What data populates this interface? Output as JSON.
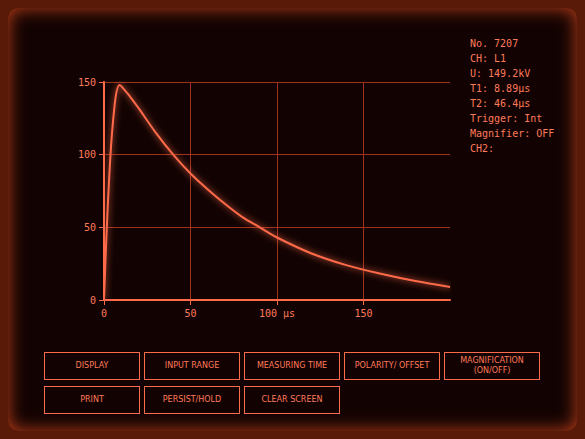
{
  "chart_data": {
    "type": "line",
    "color": "#ff6a4a",
    "grid": true,
    "x": [
      0,
      2,
      5,
      9,
      15,
      20,
      30,
      40,
      50,
      60,
      70,
      80,
      90,
      100,
      120,
      140,
      160,
      180,
      200
    ],
    "values": [
      0,
      60,
      120,
      148,
      140,
      132,
      115,
      100,
      87,
      76,
      66,
      57,
      50,
      43,
      32,
      24,
      18,
      13,
      9
    ],
    "xlim": [
      0,
      200
    ],
    "xticks": [
      0,
      50,
      {
        "value": 100,
        "label": "100 µs"
      },
      150
    ],
    "ylim": [
      0,
      150
    ],
    "yticks": [
      0,
      50,
      100,
      150
    ]
  },
  "readout": [
    "No. 7207",
    "CH: L1",
    "U: 149.2kV",
    "T1: 8.89µs",
    "T2: 46.4µs",
    "Trigger: Int",
    "Magnifier: OFF",
    "CH2:"
  ],
  "menu": [
    [
      "DISPLAY",
      "INPUT RANGE",
      "MEASURING TIME",
      "POLARITY/ OFFSET",
      "MAGNIFICATION (ON/OFF)"
    ],
    [
      "PRINT",
      "PERSIST/HOLD",
      "CLEAR SCREEN"
    ]
  ]
}
